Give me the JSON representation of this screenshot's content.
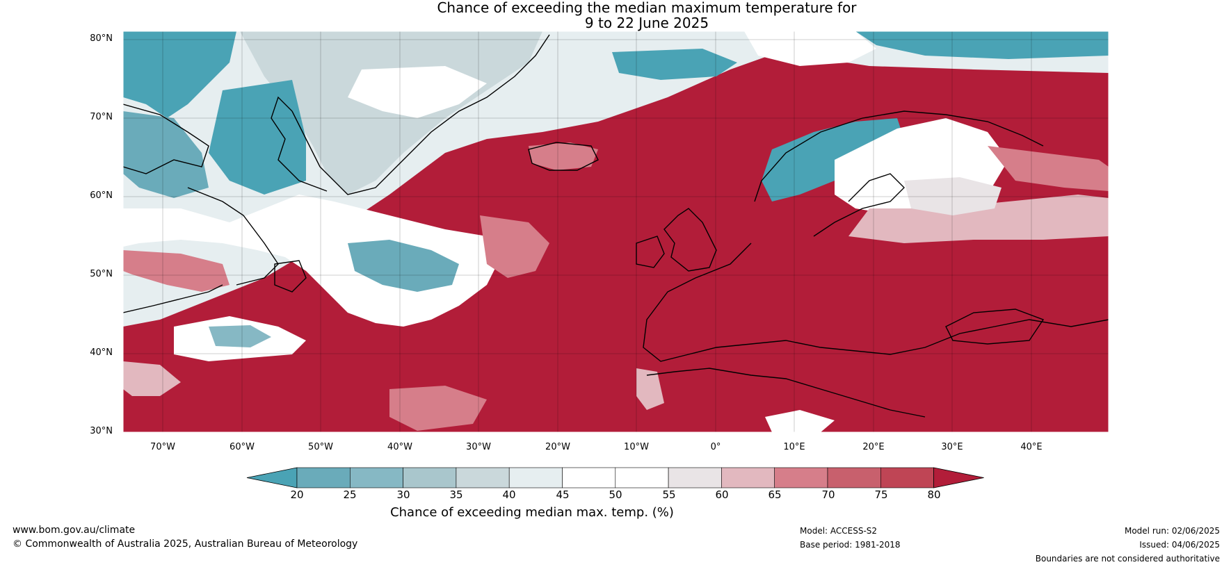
{
  "title_line1": "Chance of exceeding the median maximum temperature for",
  "title_line2": "9 to 22 June 2025",
  "lat_labels": [
    "80°N",
    "70°N",
    "60°N",
    "50°N",
    "40°N",
    "30°N"
  ],
  "lon_labels": [
    "70°W",
    "60°W",
    "50°W",
    "40°W",
    "30°W",
    "20°W",
    "10°W",
    "0°",
    "10°E",
    "20°E",
    "30°E",
    "40°E"
  ],
  "colorbar": {
    "ticks": [
      "20",
      "25",
      "30",
      "35",
      "40",
      "45",
      "50",
      "55",
      "60",
      "65",
      "70",
      "75",
      "80"
    ],
    "label": "Chance of exceeding median max. temp. (%)",
    "colors": [
      "#4aa3b5",
      "#6aabba",
      "#86b8c4",
      "#a9c6cc",
      "#cad8db",
      "#e6eef0",
      "#ffffff",
      "#ffffff",
      "#e9e4e6",
      "#e2b8bf",
      "#d67e8a",
      "#c8606d",
      "#bf4555",
      "#b21d39"
    ]
  },
  "colors": {
    "high": "#b21d39",
    "low": "#4aa3b5",
    "coast": "#000000",
    "border": "#7a7a7a"
  },
  "footer": {
    "website": "www.bom.gov.au/climate",
    "copyright": "© Commonwealth of Australia 2025, Australian Bureau of Meteorology",
    "model": "Model: ACCESS-S2",
    "base_period": "Base period: 1981-2018",
    "model_run": "Model run: 02/06/2025",
    "issued": "Issued: 04/06/2025",
    "disclaimer": "Boundaries are not considered authoritative"
  }
}
